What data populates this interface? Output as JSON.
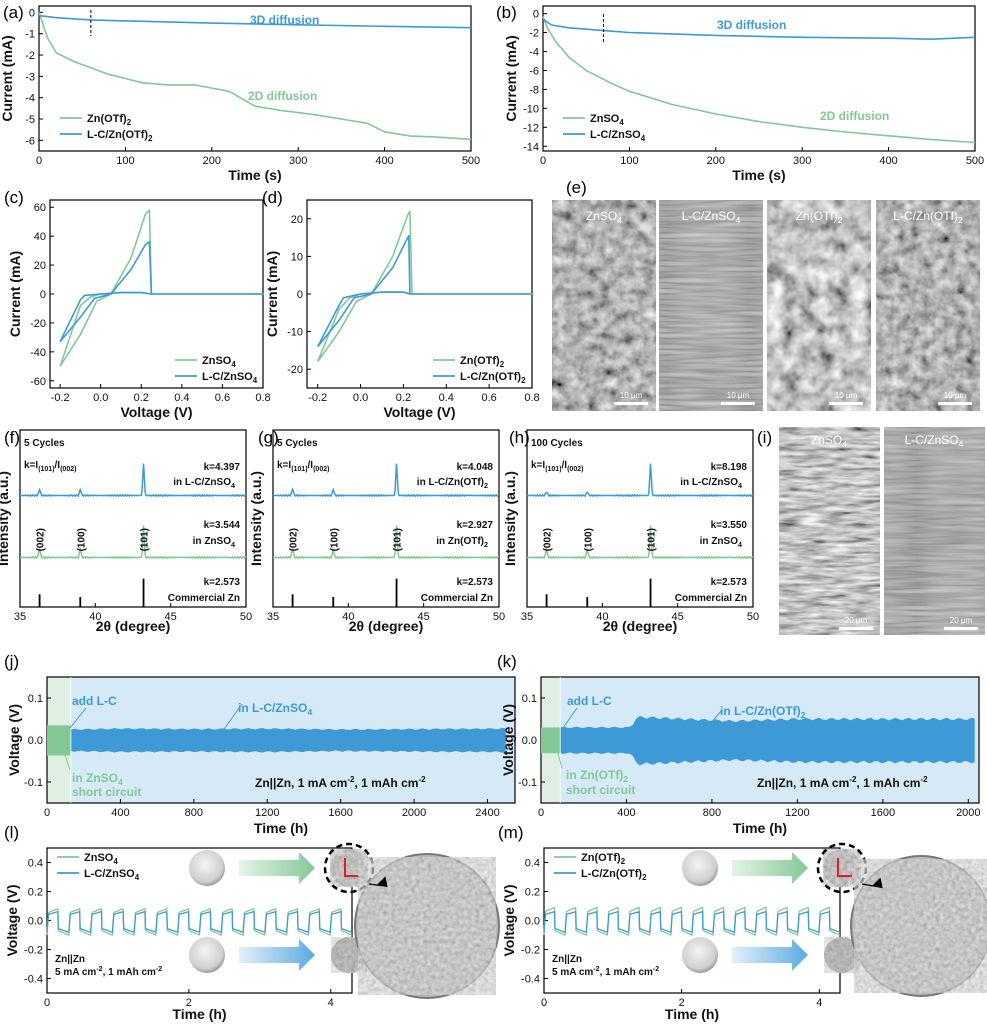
{
  "colors": {
    "green": "#82c896",
    "blue": "#3d9ad6",
    "light_blue_band": "#d6e9f6",
    "light_green_band": "#dff0e2"
  },
  "panels": {
    "a": {
      "label": "(a)",
      "xlabel": "Time (s)",
      "ylabel": "Current (mA)",
      "xticks": [
        "0",
        "100",
        "200",
        "300",
        "400",
        "500"
      ],
      "yticks": [
        "0",
        "-1",
        "-2",
        "-3",
        "-4",
        "-5",
        "-6"
      ],
      "ann_blue": "3D diffusion",
      "ann_green": "2D diffusion",
      "legend": [
        "Zn(OTf)",
        "L-C/Zn(OTf)"
      ],
      "sub": "2"
    },
    "b": {
      "label": "(b)",
      "xlabel": "Time (s)",
      "ylabel": "Current (mA)",
      "xticks": [
        "0",
        "100",
        "200",
        "300",
        "400",
        "500"
      ],
      "yticks": [
        "0",
        "-2",
        "-4",
        "-6",
        "-8",
        "-10",
        "-12",
        "-14"
      ],
      "ann_blue": "3D diffusion",
      "ann_green": "2D diffusion",
      "legend": [
        "ZnSO",
        "L-C/ZnSO"
      ],
      "sub": "4"
    },
    "c": {
      "label": "(c)",
      "xlabel": "Voltage (V)",
      "ylabel": "Current (mA)",
      "xticks": [
        "-0.2",
        "0.0",
        "0.2",
        "0.4",
        "0.6",
        "0.8"
      ],
      "yticks": [
        "60",
        "40",
        "20",
        "0",
        "-20",
        "-40",
        "-60"
      ],
      "legend": [
        "ZnSO",
        "L-C/ZnSO"
      ],
      "sub": "4"
    },
    "d": {
      "label": "(d)",
      "xlabel": "Voltage (V)",
      "ylabel": "Current (mA)",
      "xticks": [
        "-0.2",
        "0.0",
        "0.2",
        "0.4",
        "0.6",
        "0.8"
      ],
      "yticks": [
        "20",
        "10",
        "0",
        "-10",
        "-20"
      ],
      "legend": [
        "Zn(OTf)",
        "L-C/Zn(OTf)"
      ],
      "sub": "2"
    },
    "e": {
      "label": "(e)",
      "images": [
        {
          "name": "ZnSO",
          "sub": "4"
        },
        {
          "name": "L-C/ZnSO",
          "sub": "4"
        },
        {
          "name": "Zn(OTf)",
          "sub": "2"
        },
        {
          "name": "L-C/Zn(OTf)",
          "sub": "2"
        }
      ],
      "scale": "10 μm"
    },
    "f": {
      "label": "(f)",
      "cycles": "5 Cycles",
      "k_top": "k=4.397",
      "in_top": "in L-C/ZnSO",
      "k_mid": "k=3.544",
      "in_mid": "in ZnSO",
      "sub": "4",
      "k_bot": "k=2.573",
      "bot": "Commercial Zn"
    },
    "g": {
      "label": "(g)",
      "cycles": "5 Cycles",
      "k_top": "k=4.048",
      "in_top": "in L-C/Zn(OTf)",
      "k_mid": "k=2.927",
      "in_mid": "in Zn(OTf)",
      "sub": "2",
      "k_bot": "k=2.573",
      "bot": "Commercial Zn"
    },
    "h": {
      "label": "(h)",
      "cycles": "100 Cycles",
      "k_top": "k=8.198",
      "in_top": "in L-C/ZnSO",
      "k_mid": "k=3.550",
      "in_mid": "in ZnSO",
      "sub": "4",
      "k_bot": "k=2.573",
      "bot": "Commercial Zn"
    },
    "xrd_common": {
      "xlabel": "2θ (degree)",
      "ylabel": "Intensity (a.u.)",
      "xticks": [
        "35",
        "40",
        "45",
        "50"
      ],
      "kdef": "k=I",
      "kdef2": "/I",
      "i101": "(101)",
      "i002": "(002)",
      "peaks": [
        "(002)",
        "(100)",
        "(101)"
      ]
    },
    "i": {
      "label": "(i)",
      "images": [
        {
          "name": "ZnSO",
          "sub": "4"
        },
        {
          "name": "L-C/ZnSO",
          "sub": "4"
        }
      ],
      "scale": "20 μm"
    },
    "j": {
      "label": "(j)",
      "xlabel": "Time (h)",
      "ylabel": "Voltage (V)",
      "xticks": [
        "0",
        "400",
        "800",
        "1200",
        "1600",
        "2000",
        "2400"
      ],
      "yticks": [
        "0.1",
        "0.0",
        "-0.1"
      ],
      "add": "add L-C",
      "in_label": "in L-C/ZnSO",
      "sub": "4",
      "short1": "in ZnSO",
      "short2": "short circuit",
      "cond": "Zn||Zn, 1 mA cm",
      "cond2": ", 1 mAh cm",
      "sup": "-2"
    },
    "k": {
      "label": "(k)",
      "xlabel": "Time (h)",
      "ylabel": "Voltage (V)",
      "xticks": [
        "0",
        "400",
        "800",
        "1200",
        "1600",
        "2000"
      ],
      "yticks": [
        "0.1",
        "0.0",
        "-0.1"
      ],
      "add": "add L-C",
      "in_label": "in L-C/Zn(OTf)",
      "sub": "2",
      "short1": "in Zn(OTf)",
      "short2": "short circuit",
      "cond": "Zn||Zn, 1 mA cm",
      "cond2": ", 1 mAh cm",
      "sup": "-2"
    },
    "l": {
      "label": "(l)",
      "xlabel": "Time (h)",
      "ylabel": "Voltage (V)",
      "xticks": [
        "0",
        "2",
        "4"
      ],
      "yticks": [
        "0.4",
        "0.2",
        "0.0",
        "-0.2",
        "-0.4"
      ],
      "legend": [
        "ZnSO",
        "L-C/ZnSO"
      ],
      "sub": "4",
      "cell": "Zn||Zn",
      "cond": "5 mA cm",
      "cond2": ", 1 mAh cm",
      "sup": "-2"
    },
    "m": {
      "label": "(m)",
      "xlabel": "Time (h)",
      "ylabel": "Voltage (V)",
      "xticks": [
        "0",
        "2",
        "4"
      ],
      "yticks": [
        "0.4",
        "0.2",
        "0.0",
        "-0.2",
        "-0.4"
      ],
      "legend": [
        "Zn(OTf)",
        "L-C/Zn(OTf)"
      ],
      "sub": "2",
      "cell": "Zn||Zn",
      "cond": "5 mA cm",
      "cond2": ", 1 mAh cm",
      "sup": "-2"
    }
  },
  "chart_data": [
    {
      "id": "a",
      "type": "line",
      "xlim": [
        0,
        500
      ],
      "ylim": [
        -6.5,
        0.3
      ],
      "series": [
        {
          "name": "Zn(OTf)2",
          "color": "green",
          "x": [
            0,
            5,
            10,
            20,
            40,
            60,
            80,
            100,
            120,
            150,
            180,
            200,
            220,
            250,
            280,
            300,
            320,
            350,
            380,
            400,
            430,
            460,
            500
          ],
          "y": [
            0,
            -0.6,
            -1.2,
            -1.9,
            -2.3,
            -2.6,
            -2.9,
            -3.1,
            -3.3,
            -3.4,
            -3.4,
            -3.55,
            -3.7,
            -4.4,
            -4.6,
            -4.7,
            -4.8,
            -5.0,
            -5.2,
            -5.6,
            -5.8,
            -5.85,
            -5.95
          ]
        },
        {
          "name": "L-C/Zn(OTf)2",
          "color": "blue",
          "x": [
            0,
            20,
            60,
            100,
            200,
            300,
            400,
            500
          ],
          "y": [
            -0.15,
            -0.25,
            -0.35,
            -0.4,
            -0.5,
            -0.58,
            -0.65,
            -0.72
          ]
        }
      ]
    },
    {
      "id": "b",
      "type": "line",
      "xlim": [
        0,
        500
      ],
      "ylim": [
        -14.5,
        0.8
      ],
      "series": [
        {
          "name": "ZnSO4",
          "color": "green",
          "x": [
            0,
            5,
            15,
            30,
            50,
            80,
            100,
            150,
            200,
            250,
            300,
            350,
            400,
            450,
            500
          ],
          "y": [
            -0.3,
            -1.5,
            -3.0,
            -4.6,
            -6.0,
            -7.4,
            -8.2,
            -9.6,
            -10.6,
            -11.4,
            -12.0,
            -12.5,
            -12.9,
            -13.3,
            -13.6
          ]
        },
        {
          "name": "L-C/ZnSO4",
          "color": "blue",
          "x": [
            0,
            10,
            30,
            70,
            100,
            200,
            300,
            400,
            450,
            500
          ],
          "y": [
            -0.6,
            -1.2,
            -1.5,
            -1.8,
            -2.0,
            -2.3,
            -2.5,
            -2.6,
            -2.7,
            -2.5
          ]
        }
      ]
    },
    {
      "id": "c",
      "type": "line",
      "xlim": [
        -0.25,
        0.8
      ],
      "ylim": [
        -65,
        65
      ],
      "series": [
        {
          "name": "ZnSO4",
          "color": "green",
          "x": [
            -0.2,
            -0.1,
            -0.02,
            0.05,
            0.15,
            0.22,
            0.24,
            0.25,
            0.8,
            0.25,
            0.2,
            0.1,
            0.0,
            -0.05,
            -0.1,
            -0.2
          ],
          "y": [
            -50,
            -28,
            -5,
            0,
            25,
            55,
            58,
            0,
            0,
            0,
            1,
            1,
            0,
            -2,
            -8,
            -50
          ]
        },
        {
          "name": "L-C/ZnSO4",
          "color": "blue",
          "x": [
            -0.2,
            -0.1,
            -0.03,
            0.05,
            0.15,
            0.22,
            0.24,
            0.25,
            0.8,
            0.25,
            0.2,
            0.1,
            0.0,
            -0.08,
            -0.1,
            -0.2
          ],
          "y": [
            -33,
            -16,
            -3,
            0,
            17,
            34,
            36,
            0,
            0,
            0,
            1,
            1,
            0,
            -1,
            -4,
            -33
          ]
        }
      ]
    },
    {
      "id": "d",
      "type": "line",
      "xlim": [
        -0.25,
        0.8
      ],
      "ylim": [
        -25,
        25
      ],
      "series": [
        {
          "name": "Zn(OTf)2",
          "color": "green",
          "x": [
            -0.2,
            -0.1,
            -0.02,
            0.05,
            0.15,
            0.22,
            0.23,
            0.24,
            0.8,
            0.24,
            0.2,
            0.1,
            0.0,
            -0.05,
            -0.1,
            -0.2
          ],
          "y": [
            -18,
            -10,
            -2,
            0,
            10,
            21,
            22,
            0,
            0,
            0,
            0.5,
            0.5,
            0,
            -1,
            -4,
            -18
          ]
        },
        {
          "name": "L-C/Zn(OTf)2",
          "color": "blue",
          "x": [
            -0.2,
            -0.1,
            -0.03,
            0.05,
            0.15,
            0.22,
            0.225,
            0.23,
            0.8,
            0.23,
            0.2,
            0.1,
            0.0,
            -0.08,
            -0.1,
            -0.2
          ],
          "y": [
            -14,
            -7,
            -1,
            0,
            7,
            15,
            15.5,
            0,
            0,
            0,
            0.5,
            0.5,
            0,
            -1,
            -3,
            -14
          ]
        }
      ]
    },
    {
      "id": "f",
      "type": "line",
      "xlim": [
        35,
        50
      ],
      "series": [
        {
          "name": "in L-C/ZnSO4",
          "color": "blue",
          "peaks": [
            [
              36.3,
              0.2
            ],
            [
              39.0,
              0.2
            ],
            [
              43.2,
              1.0
            ]
          ]
        },
        {
          "name": "in ZnSO4",
          "color": "green",
          "peaks": [
            [
              36.3,
              0.3
            ],
            [
              39.0,
              0.28
            ],
            [
              43.2,
              1.0
            ]
          ]
        },
        {
          "name": "Commercial Zn",
          "color": "black",
          "sticks": [
            [
              36.3,
              0.45
            ],
            [
              39.0,
              0.35
            ],
            [
              43.2,
              1.0
            ]
          ]
        }
      ]
    },
    {
      "id": "g",
      "type": "line",
      "xlim": [
        35,
        50
      ],
      "series": [
        {
          "name": "in L-C/Zn(OTf)2",
          "color": "blue",
          "peaks": [
            [
              36.3,
              0.22
            ],
            [
              39.0,
              0.2
            ],
            [
              43.2,
              1.0
            ]
          ]
        },
        {
          "name": "in Zn(OTf)2",
          "color": "green",
          "peaks": [
            [
              36.3,
              0.3
            ],
            [
              39.0,
              0.26
            ],
            [
              43.2,
              1.0
            ]
          ]
        },
        {
          "name": "Commercial Zn",
          "color": "black",
          "sticks": [
            [
              36.3,
              0.45
            ],
            [
              39.0,
              0.35
            ],
            [
              43.2,
              1.0
            ]
          ]
        }
      ]
    },
    {
      "id": "h",
      "type": "line",
      "xlim": [
        35,
        50
      ],
      "series": [
        {
          "name": "in L-C/ZnSO4",
          "color": "blue",
          "peaks": [
            [
              36.3,
              0.12
            ],
            [
              39.0,
              0.12
            ],
            [
              43.2,
              1.0
            ]
          ]
        },
        {
          "name": "in ZnSO4",
          "color": "green",
          "peaks": [
            [
              36.3,
              0.28
            ],
            [
              39.0,
              0.26
            ],
            [
              43.2,
              1.0
            ]
          ]
        },
        {
          "name": "Commercial Zn",
          "color": "black",
          "sticks": [
            [
              36.3,
              0.45
            ],
            [
              39.0,
              0.35
            ],
            [
              43.2,
              1.0
            ]
          ]
        }
      ]
    },
    {
      "id": "j",
      "type": "area",
      "xlim": [
        0,
        2550
      ],
      "ylim": [
        -0.15,
        0.15
      ],
      "series": [
        {
          "name": "ZnSO4",
          "color": "green",
          "x": [
            0,
            130
          ],
          "amp": [
            0.035,
            0.035
          ]
        },
        {
          "name": "L-C/ZnSO4",
          "color": "blue",
          "x": [
            130,
            400,
            800,
            1200,
            1600,
            2000,
            2500
          ],
          "amp": [
            0.025,
            0.027,
            0.026,
            0.027,
            0.025,
            0.026,
            0.027
          ]
        }
      ]
    },
    {
      "id": "k",
      "type": "area",
      "xlim": [
        0,
        2050
      ],
      "ylim": [
        -0.15,
        0.15
      ],
      "series": [
        {
          "name": "Zn(OTf)2",
          "color": "green",
          "x": [
            0,
            90
          ],
          "amp": [
            0.03,
            0.03
          ]
        },
        {
          "name": "L-C/Zn(OTf)2",
          "color": "blue",
          "x": [
            90,
            420,
            450,
            900,
            1200,
            1600,
            2030
          ],
          "amp": [
            0.03,
            0.03,
            0.055,
            0.045,
            0.05,
            0.05,
            0.05
          ]
        }
      ]
    },
    {
      "id": "l",
      "type": "line",
      "xlim": [
        0,
        4.3
      ],
      "ylim": [
        -0.5,
        0.5
      ],
      "series": [
        {
          "name": "ZnSO4",
          "color": "green",
          "cycles": 14,
          "hi": 0.08,
          "lo": -0.1
        },
        {
          "name": "L-C/ZnSO4",
          "color": "blue",
          "cycles": 14,
          "hi": 0.06,
          "lo": -0.08
        }
      ]
    },
    {
      "id": "m",
      "type": "line",
      "xlim": [
        0,
        4.3
      ],
      "ylim": [
        -0.5,
        0.5
      ],
      "series": [
        {
          "name": "Zn(OTf)2",
          "color": "green",
          "cycles": 14,
          "hi": 0.09,
          "lo": -0.1
        },
        {
          "name": "L-C/Zn(OTf)2",
          "color": "blue",
          "cycles": 14,
          "hi": 0.06,
          "lo": -0.08
        }
      ]
    }
  ]
}
